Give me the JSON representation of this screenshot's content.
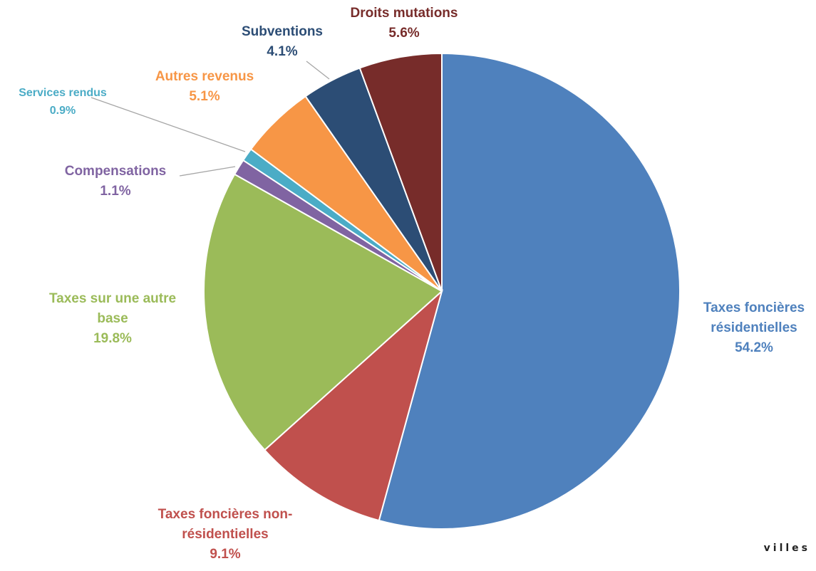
{
  "chart_data": {
    "type": "pie",
    "title": "",
    "start_angle_deg": 0,
    "direction": "clockwise",
    "slices": [
      {
        "label_lines": [
          "Taxes foncières",
          "résidentielles"
        ],
        "value": 54.2,
        "value_text": "54.2%",
        "color": "#4F81BD"
      },
      {
        "label_lines": [
          "Taxes foncières non-",
          "résidentielles"
        ],
        "value": 9.1,
        "value_text": "9.1%",
        "color": "#C0504D"
      },
      {
        "label_lines": [
          "Taxes sur une autre",
          "base"
        ],
        "value": 19.8,
        "value_text": "19.8%",
        "color": "#9BBB59"
      },
      {
        "label_lines": [
          "Compensations"
        ],
        "value": 1.1,
        "value_text": "1.1%",
        "color": "#8064A2"
      },
      {
        "label_lines": [
          "Services rendus"
        ],
        "value": 0.9,
        "value_text": "0.9%",
        "color": "#4BACC6"
      },
      {
        "label_lines": [
          "Autres revenus"
        ],
        "value": 5.1,
        "value_text": "5.1%",
        "color": "#F79646"
      },
      {
        "label_lines": [
          "Subventions"
        ],
        "value": 4.1,
        "value_text": "4.1%",
        "color": "#2C4D75"
      },
      {
        "label_lines": [
          "Droits mutations"
        ],
        "value": 5.6,
        "value_text": "5.6%",
        "color": "#772C2A"
      }
    ],
    "label_colors": [
      "#4F81BD",
      "#C0504D",
      "#9BBB59",
      "#8064A2",
      "#4BACC6",
      "#F79646",
      "#2C4D75",
      "#772C2A"
    ]
  },
  "watermark": "villes"
}
